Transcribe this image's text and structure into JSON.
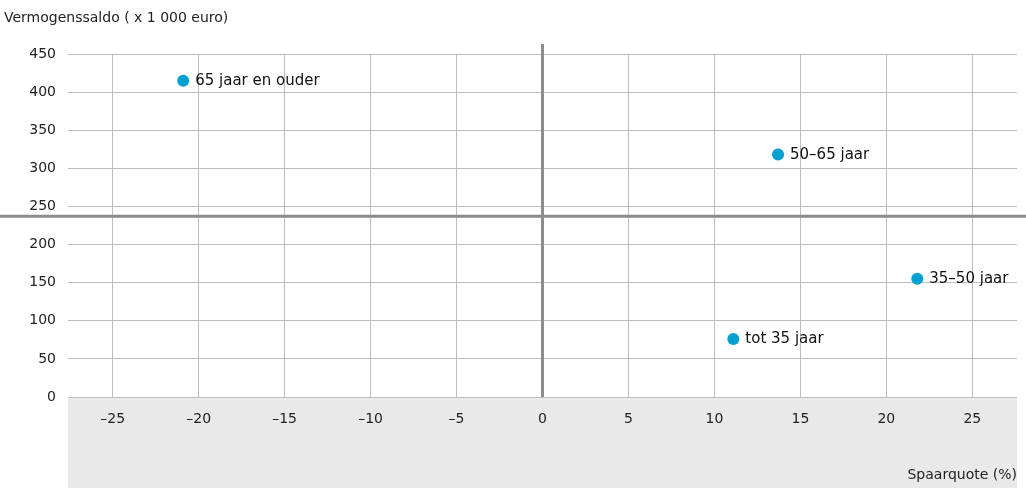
{
  "chart_data": {
    "type": "scatter",
    "xlabel": "Spaarquote (%)",
    "ylabel": "Vermogenssaldo ( x 1 000 euro)",
    "x": [
      -20.9,
      13.7,
      21.8,
      11.1
    ],
    "values": [
      415,
      318,
      155,
      76
    ],
    "color": "#00a0d0",
    "marker": "circle",
    "xlim": [
      -27.6,
      27.6
    ],
    "ylim": [
      0,
      450
    ],
    "xticks": [
      {
        "value": -25,
        "label": "–25"
      },
      {
        "value": -20,
        "label": "–20"
      },
      {
        "value": -15,
        "label": "–15"
      },
      {
        "value": -10,
        "label": "–10"
      },
      {
        "value": -5,
        "label": "–5"
      },
      0,
      5,
      10,
      15,
      20,
      25
    ],
    "yticks": [
      0,
      50,
      100,
      150,
      200,
      250,
      300,
      350,
      400,
      450
    ],
    "grid": true,
    "ref_lines": [
      {
        "axis": "x",
        "value": 0,
        "color": "#8c8c8c"
      },
      {
        "axis": "y",
        "value": 237,
        "color": "#8c8c8c"
      }
    ],
    "annotations": [
      {
        "text": "65 jaar en ouder",
        "x": -20.9,
        "y": 415
      },
      {
        "text": "50–65 jaar",
        "x": 13.7,
        "y": 318
      },
      {
        "text": "35–50 jaar",
        "x": 21.8,
        "y": 155
      },
      {
        "text": "tot 35 jaar",
        "x": 11.1,
        "y": 76
      }
    ]
  }
}
